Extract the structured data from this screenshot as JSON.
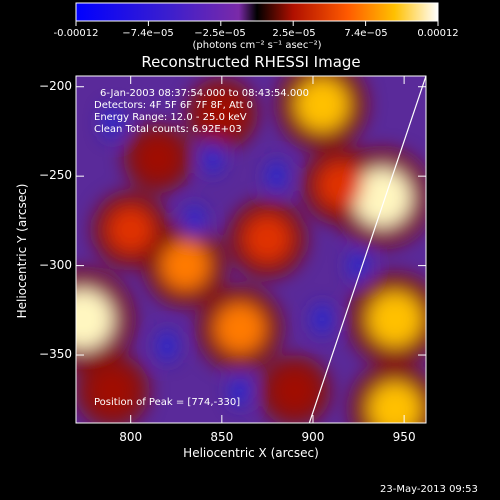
{
  "chart_data": {
    "type": "heatmap",
    "title": "Reconstructed RHESSI Image",
    "xlabel": "Heliocentric X (arcsec)",
    "ylabel": "Heliocentric Y (arcsec)",
    "xlim": [
      770,
      962
    ],
    "ylim": [
      -388,
      -194
    ],
    "x_ticks": [
      800,
      850,
      900,
      950
    ],
    "y_ticks": [
      -200,
      -250,
      -300,
      -350
    ],
    "colorbar": {
      "ticks": [
        "-0.00012",
        "−7.4e−05",
        "−2.5e−05",
        "2.5e−05",
        "7.4e−05",
        "0.00012"
      ],
      "unit_label": "(photons cm⁻² s⁻¹ asec⁻²)",
      "range": [
        -0.00012,
        0.00012
      ]
    },
    "info_lines": [
      "6-Jan-2003 08:37:54.000 to 08:43:54.000",
      "Detectors: 4F 5F 6F 7F 8F, Att 0",
      "Energy Range: 12.0 - 25.0 keV",
      "Clean      Total counts: 6.92E+03"
    ],
    "peak_label": "Position of Peak = [774,-330]",
    "peak": [
      774,
      -330
    ],
    "hot_spots": [
      {
        "x": 774,
        "y": -330,
        "v": 1.0
      },
      {
        "x": 938,
        "y": -262,
        "v": 0.95
      },
      {
        "x": 905,
        "y": -210,
        "v": 0.8
      },
      {
        "x": 945,
        "y": -330,
        "v": 0.85
      },
      {
        "x": 945,
        "y": -380,
        "v": 0.8
      },
      {
        "x": 860,
        "y": -335,
        "v": 0.7
      },
      {
        "x": 830,
        "y": -300,
        "v": 0.65
      },
      {
        "x": 800,
        "y": -280,
        "v": 0.55
      },
      {
        "x": 875,
        "y": -285,
        "v": 0.6
      },
      {
        "x": 915,
        "y": -255,
        "v": 0.55
      },
      {
        "x": 850,
        "y": -215,
        "v": 0.45
      },
      {
        "x": 790,
        "y": -370,
        "v": 0.5
      },
      {
        "x": 890,
        "y": -370,
        "v": 0.45
      },
      {
        "x": 815,
        "y": -240,
        "v": 0.4
      }
    ],
    "limb_line": {
      "x": [
        898,
        962
      ],
      "y": [
        -388,
        -194
      ]
    }
  },
  "footer": {
    "timestamp": "23-May-2013 09:53"
  }
}
